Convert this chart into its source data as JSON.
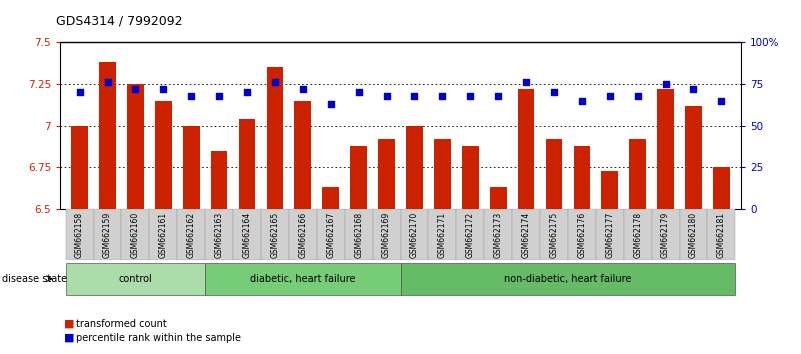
{
  "title": "GDS4314 / 7992092",
  "samples": [
    "GSM662158",
    "GSM662159",
    "GSM662160",
    "GSM662161",
    "GSM662162",
    "GSM662163",
    "GSM662164",
    "GSM662165",
    "GSM662166",
    "GSM662167",
    "GSM662168",
    "GSM662169",
    "GSM662170",
    "GSM662171",
    "GSM662172",
    "GSM662173",
    "GSM662174",
    "GSM662175",
    "GSM662176",
    "GSM662177",
    "GSM662178",
    "GSM662179",
    "GSM662180",
    "GSM662181"
  ],
  "bar_values": [
    7.0,
    7.38,
    7.25,
    7.15,
    7.0,
    6.85,
    7.04,
    7.35,
    7.15,
    6.63,
    6.88,
    6.92,
    7.0,
    6.92,
    6.88,
    6.63,
    7.22,
    6.92,
    6.88,
    6.73,
    6.92,
    7.22,
    7.12,
    6.75
  ],
  "dot_values": [
    70,
    76,
    72,
    72,
    68,
    68,
    70,
    76,
    72,
    63,
    70,
    68,
    68,
    68,
    68,
    68,
    76,
    70,
    65,
    68,
    68,
    75,
    72,
    65
  ],
  "bar_color": "#cc2200",
  "dot_color": "#0000cc",
  "ylim_left": [
    6.5,
    7.5
  ],
  "ylim_right": [
    0,
    100
  ],
  "yticks_left": [
    6.5,
    6.75,
    7.0,
    7.25,
    7.5
  ],
  "ytick_labels_left": [
    "6.5",
    "6.75",
    "7",
    "7.25",
    "7.5"
  ],
  "yticks_right": [
    0,
    25,
    50,
    75,
    100
  ],
  "ytick_labels_right": [
    "0",
    "25",
    "50",
    "75",
    "100%"
  ],
  "groups": [
    {
      "label": "control",
      "start": 0,
      "end": 4
    },
    {
      "label": "diabetic, heart failure",
      "start": 5,
      "end": 11
    },
    {
      "label": "non-diabetic, heart failure",
      "start": 12,
      "end": 23
    }
  ],
  "group_colors": [
    "#aaddaa",
    "#77cc77",
    "#66bb66"
  ],
  "legend_bar_label": "transformed count",
  "legend_dot_label": "percentile rank within the sample",
  "disease_state_label": "disease state",
  "tick_label_color_left": "#cc2200",
  "tick_label_color_right": "#0000cc"
}
